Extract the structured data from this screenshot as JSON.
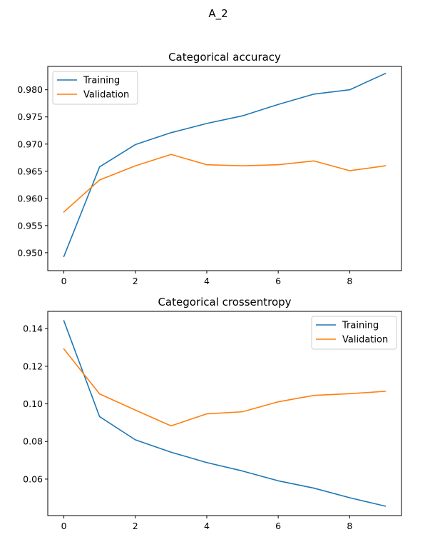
{
  "figure": {
    "title": "A_2"
  },
  "colors": {
    "training": "#1f77b4",
    "validation": "#ff7f0e"
  },
  "chart_data": [
    {
      "type": "line",
      "title": "Categorical accuracy",
      "xlabel": "",
      "ylabel": "",
      "x": [
        0,
        1,
        2,
        3,
        4,
        5,
        6,
        7,
        8,
        9
      ],
      "series": [
        {
          "name": "Training",
          "color": "#1f77b4",
          "values": [
            0.9493,
            0.9658,
            0.9699,
            0.9721,
            0.9738,
            0.9752,
            0.9773,
            0.9792,
            0.98,
            0.983
          ]
        },
        {
          "name": "Validation",
          "color": "#ff7f0e",
          "values": [
            0.9575,
            0.9634,
            0.966,
            0.9681,
            0.9662,
            0.966,
            0.9662,
            0.9669,
            0.9651,
            0.966
          ]
        }
      ],
      "xlim": [
        -0.45,
        9.45
      ],
      "ylim": [
        0.9467,
        0.9843
      ],
      "xticks": [
        0,
        2,
        4,
        6,
        8
      ],
      "yticks": [
        0.95,
        0.955,
        0.96,
        0.965,
        0.97,
        0.975,
        0.98
      ],
      "ytick_labels": [
        "0.950",
        "0.955",
        "0.960",
        "0.965",
        "0.970",
        "0.975",
        "0.980"
      ],
      "legend": "upper-left",
      "grid": false
    },
    {
      "type": "line",
      "title": "Categorical crossentropy",
      "xlabel": "",
      "ylabel": "",
      "x": [
        0,
        1,
        2,
        3,
        4,
        5,
        6,
        7,
        8,
        9
      ],
      "series": [
        {
          "name": "Training",
          "color": "#1f77b4",
          "values": [
            0.1442,
            0.0932,
            0.0809,
            0.0743,
            0.0688,
            0.0643,
            0.0591,
            0.0552,
            0.0501,
            0.0456
          ]
        },
        {
          "name": "Validation",
          "color": "#ff7f0e",
          "values": [
            0.1292,
            0.1053,
            0.0967,
            0.0883,
            0.0947,
            0.0958,
            0.1011,
            0.1045,
            0.1054,
            0.1067
          ]
        }
      ],
      "xlim": [
        -0.45,
        9.45
      ],
      "ylim": [
        0.0406,
        0.1492
      ],
      "xticks": [
        0,
        2,
        4,
        6,
        8
      ],
      "yticks": [
        0.06,
        0.08,
        0.1,
        0.12,
        0.14
      ],
      "ytick_labels": [
        "0.06",
        "0.08",
        "0.10",
        "0.12",
        "0.14"
      ],
      "legend": "upper-right",
      "grid": false
    }
  ]
}
